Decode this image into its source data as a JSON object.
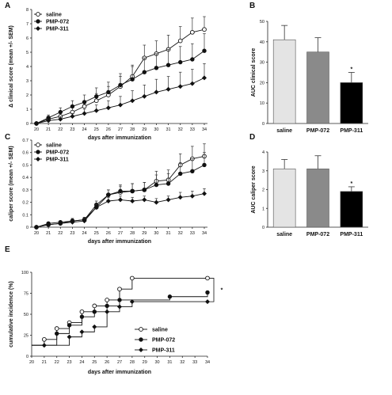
{
  "chart_data": [
    {
      "panel": "A",
      "type": "line",
      "ylabel": "Δ clinical score (mean +/- SEM)",
      "xlabel": "days after immunization",
      "x": [
        20,
        21,
        22,
        23,
        24,
        25,
        26,
        27,
        28,
        29,
        30,
        31,
        32,
        33,
        34
      ],
      "x_ticks": [
        "20",
        "21",
        "22",
        "23",
        "24",
        "25",
        "26",
        "27",
        "28",
        "29",
        "30",
        "31",
        "32",
        "33",
        "34"
      ],
      "ylim": [
        0,
        8
      ],
      "y_ticks": [
        "0",
        "1",
        "2",
        "3",
        "4",
        "5",
        "6",
        "7",
        "8"
      ],
      "legend": "top-left",
      "series": [
        {
          "name": "saline",
          "marker": "open-circle",
          "values": [
            0,
            0.3,
            0.5,
            0.8,
            1.2,
            1.6,
            2,
            2.6,
            3.3,
            4.6,
            4.9,
            5.2,
            5.8,
            6.4,
            6.6
          ],
          "err": [
            0,
            0.2,
            0.3,
            0.3,
            0.4,
            0.5,
            0.6,
            0.7,
            0.8,
            0.9,
            0.9,
            1,
            1,
            1,
            0.9
          ]
        },
        {
          "name": "PMP-072",
          "marker": "filled-circle",
          "values": [
            0,
            0.4,
            0.8,
            1.2,
            1.5,
            1.9,
            2.2,
            2.7,
            3.1,
            3.6,
            3.9,
            4.1,
            4.3,
            4.5,
            5.1
          ],
          "err": [
            0,
            0.2,
            0.3,
            0.4,
            0.5,
            0.6,
            0.7,
            0.8,
            0.9,
            1,
            1,
            1.1,
            1.1,
            1.1,
            1.2
          ]
        },
        {
          "name": "PMP-311",
          "marker": "filled-diamond",
          "values": [
            0,
            0.2,
            0.3,
            0.5,
            0.7,
            0.9,
            1.1,
            1.3,
            1.6,
            1.9,
            2.2,
            2.4,
            2.6,
            2.8,
            3.2
          ],
          "err": [
            0,
            0.1,
            0.2,
            0.2,
            0.3,
            0.4,
            0.5,
            0.6,
            0.7,
            0.8,
            0.9,
            0.9,
            1,
            1,
            1
          ]
        }
      ]
    },
    {
      "panel": "B",
      "type": "bar",
      "ylabel": "AUC clinical score",
      "categories": [
        "saline",
        "PMP-072",
        "PMP-311"
      ],
      "values": [
        41,
        35,
        20
      ],
      "err": [
        7,
        7,
        5
      ],
      "colors": [
        "#e4e4e4",
        "#8a8a8a",
        "#000000"
      ],
      "ylim": [
        0,
        50
      ],
      "y_ticks": [
        "0",
        "10",
        "20",
        "30",
        "40",
        "50"
      ],
      "annotations": [
        "",
        "",
        "*"
      ]
    },
    {
      "panel": "C",
      "type": "line",
      "ylabel": "caliper score (mean +/- SEM)",
      "xlabel": "days after immunization",
      "x": [
        20,
        21,
        22,
        23,
        24,
        25,
        26,
        27,
        28,
        29,
        30,
        31,
        32,
        33,
        34
      ],
      "x_ticks": [
        "20",
        "21",
        "22",
        "23",
        "24",
        "25",
        "26",
        "27",
        "28",
        "29",
        "30",
        "31",
        "32",
        "33",
        "34"
      ],
      "ylim": [
        0,
        0.7
      ],
      "y_ticks": [
        "0",
        "0.1",
        "0.2",
        "0.3",
        "0.4",
        "0.5",
        "0.6",
        "0.7"
      ],
      "legend": "top-left",
      "series": [
        {
          "name": "saline",
          "marker": "open-circle",
          "values": [
            0,
            0.02,
            0.03,
            0.05,
            0.06,
            0.16,
            0.26,
            0.28,
            0.29,
            0.3,
            0.37,
            0.38,
            0.5,
            0.55,
            0.57
          ],
          "err": [
            0,
            0.01,
            0.01,
            0.02,
            0.02,
            0.03,
            0.04,
            0.05,
            0.06,
            0.06,
            0.08,
            0.08,
            0.09,
            0.1,
            0.1
          ]
        },
        {
          "name": "PMP-072",
          "marker": "filled-circle",
          "values": [
            0,
            0.03,
            0.04,
            0.05,
            0.06,
            0.18,
            0.26,
            0.29,
            0.29,
            0.3,
            0.34,
            0.35,
            0.43,
            0.45,
            0.5
          ],
          "err": [
            0,
            0.01,
            0.01,
            0.02,
            0.02,
            0.03,
            0.04,
            0.05,
            0.06,
            0.06,
            0.08,
            0.08,
            0.09,
            0.1,
            0.1
          ]
        },
        {
          "name": "PMP-311",
          "marker": "filled-diamond",
          "values": [
            0,
            0.02,
            0.03,
            0.04,
            0.05,
            0.16,
            0.21,
            0.22,
            0.21,
            0.22,
            0.2,
            0.22,
            0.24,
            0.25,
            0.27
          ],
          "err": [
            0,
            0.01,
            0.01,
            0.01,
            0.02,
            0.02,
            0.03,
            0.03,
            0.03,
            0.03,
            0.03,
            0.03,
            0.04,
            0.04,
            0.04
          ]
        }
      ]
    },
    {
      "panel": "D",
      "type": "bar",
      "ylabel": "AUC caliper score",
      "categories": [
        "saline",
        "PMP-072",
        "PMP-311"
      ],
      "values": [
        3.1,
        3.1,
        1.9
      ],
      "err": [
        0.5,
        0.7,
        0.25
      ],
      "colors": [
        "#e4e4e4",
        "#8a8a8a",
        "#000000"
      ],
      "ylim": [
        0,
        4
      ],
      "y_ticks": [
        "0",
        "1",
        "2",
        "3",
        "4"
      ],
      "annotations": [
        "",
        "",
        "*"
      ]
    },
    {
      "panel": "E",
      "type": "line",
      "step": true,
      "ylabel": "cumulative incidence (%)",
      "xlabel": "days after immunization",
      "x_ticks": [
        "20",
        "21",
        "22",
        "23",
        "24",
        "25",
        "26",
        "27",
        "28",
        "29",
        "30",
        "31",
        "32",
        "33",
        "34"
      ],
      "xlim": [
        20,
        34
      ],
      "ylim": [
        0,
        100
      ],
      "y_ticks": [
        "0",
        "25",
        "50",
        "75",
        "100"
      ],
      "legend": "bottom-right",
      "significance": "*",
      "series": [
        {
          "name": "saline",
          "marker": "open-circle",
          "points": [
            [
              20,
              13
            ],
            [
              21,
              20
            ],
            [
              22,
              33
            ],
            [
              23,
              40
            ],
            [
              24,
              53
            ],
            [
              25,
              60
            ],
            [
              26,
              67
            ],
            [
              27,
              80
            ],
            [
              28,
              93
            ],
            [
              34,
              93
            ]
          ]
        },
        {
          "name": "PMP-072",
          "marker": "filled-circle",
          "points": [
            [
              20,
              13
            ],
            [
              22,
              27
            ],
            [
              23,
              37
            ],
            [
              24,
              47
            ],
            [
              25,
              53
            ],
            [
              26,
              60
            ],
            [
              27,
              67
            ],
            [
              31,
              71
            ],
            [
              34,
              76
            ]
          ]
        },
        {
          "name": "PMP-311",
          "marker": "filled-diamond",
          "points": [
            [
              20,
              13
            ],
            [
              21,
              13
            ],
            [
              23,
              23
            ],
            [
              24,
              29
            ],
            [
              25,
              35
            ],
            [
              26,
              53
            ],
            [
              27,
              59
            ],
            [
              28,
              65
            ],
            [
              34,
              65
            ]
          ]
        }
      ]
    }
  ]
}
